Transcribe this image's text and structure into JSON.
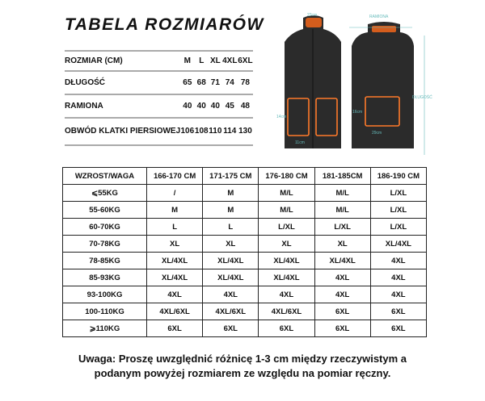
{
  "title": "TABELA ROZMIARÓW",
  "size_table": {
    "header": [
      "ROZMIAR (CM)",
      "M",
      "L",
      "XL",
      "4XL",
      "6XL"
    ],
    "rows": [
      [
        "DŁUGOŚĆ",
        "65",
        "68",
        "71",
        "74",
        "78"
      ],
      [
        "RAMIONA",
        "40",
        "40",
        "40",
        "45",
        "48"
      ],
      [
        "OBWÓD KLATKI PIERSIOWEJ",
        "106",
        "108",
        "110",
        "114",
        "130"
      ]
    ]
  },
  "diagram": {
    "labels": {
      "collar": "22cm",
      "shoulders": "RAMIONA",
      "length": "DŁUGOŚĆ",
      "front_pad_height": "14cm",
      "front_pad_width": "11cm",
      "back_pad_height": "16cm",
      "back_pad_width": "29cm"
    },
    "colors": {
      "vest": "#2a2a2a",
      "heat": "#ff6a1a",
      "measure": "#5fb8b8"
    }
  },
  "fit_table": {
    "header": [
      "WZROST/WAGA",
      "166-170 CM",
      "171-175 CM",
      "176-180 CM",
      "181-185CM",
      "186-190 CM"
    ],
    "rows": [
      [
        "⩽55KG",
        "/",
        "M",
        "M/L",
        "M/L",
        "L/XL"
      ],
      [
        "55-60KG",
        "M",
        "M",
        "M/L",
        "M/L",
        "L/XL"
      ],
      [
        "60-70KG",
        "L",
        "L",
        "L/XL",
        "L/XL",
        "L/XL"
      ],
      [
        "70-78KG",
        "XL",
        "XL",
        "XL",
        "XL",
        "XL/4XL"
      ],
      [
        "78-85KG",
        "XL/4XL",
        "XL/4XL",
        "XL/4XL",
        "XL/4XL",
        "4XL"
      ],
      [
        "85-93KG",
        "XL/4XL",
        "XL/4XL",
        "XL/4XL",
        "4XL",
        "4XL"
      ],
      [
        "93-100KG",
        "4XL",
        "4XL",
        "4XL",
        "4XL",
        "4XL"
      ],
      [
        "100-110KG",
        "4XL/6XL",
        "4XL/6XL",
        "4XL/6XL",
        "6XL",
        "6XL"
      ],
      [
        "⩾110KG",
        "6XL",
        "6XL",
        "6XL",
        "6XL",
        "6XL"
      ]
    ]
  },
  "note": {
    "line1": "Uwaga: Proszę uwzględnić różnicę 1-3 cm między rzeczywistym a",
    "line2": "podanym powyżej rozmiarem ze względu na pomiar ręczny."
  }
}
